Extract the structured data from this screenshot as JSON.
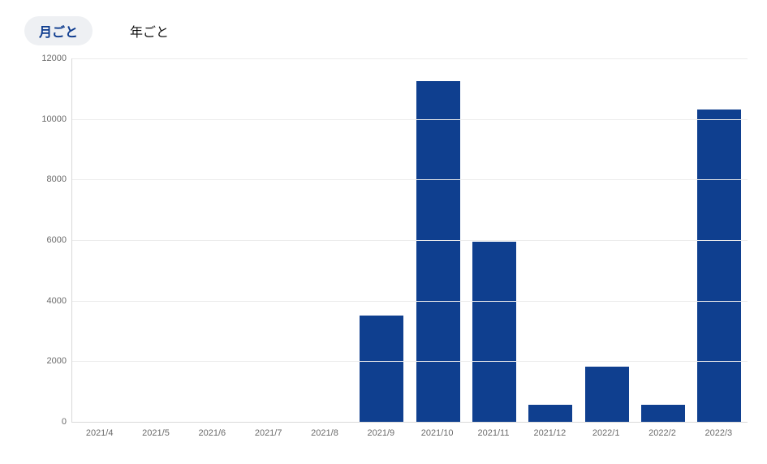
{
  "tabs": {
    "monthly_label": "月ごと",
    "yearly_label": "年ごと",
    "active": "monthly"
  },
  "chart": {
    "type": "bar",
    "categories": [
      "2021/4",
      "2021/5",
      "2021/6",
      "2021/7",
      "2021/8",
      "2021/9",
      "2021/10",
      "2021/11",
      "2021/12",
      "2022/1",
      "2022/2",
      "2022/3"
    ],
    "values": [
      0,
      0,
      0,
      0,
      0,
      3500,
      11250,
      5950,
      570,
      1830,
      560,
      10300
    ],
    "bar_color": "#0f3f8f",
    "bar_width_ratio": 0.78,
    "background_color": "#ffffff",
    "grid_color": "#ececec",
    "axis_color": "#d9d9d9",
    "ylim": [
      0,
      12000
    ],
    "ytick_step": 2000,
    "yticks": [
      0,
      2000,
      4000,
      6000,
      8000,
      10000,
      12000
    ],
    "tick_font_color": "#6b6b6b",
    "tick_fontsize": 11,
    "tab_active_bg": "#eef0f3",
    "tab_active_color": "#0d3b8e",
    "tab_inactive_color": "#111111",
    "tab_fontsize": 16
  }
}
